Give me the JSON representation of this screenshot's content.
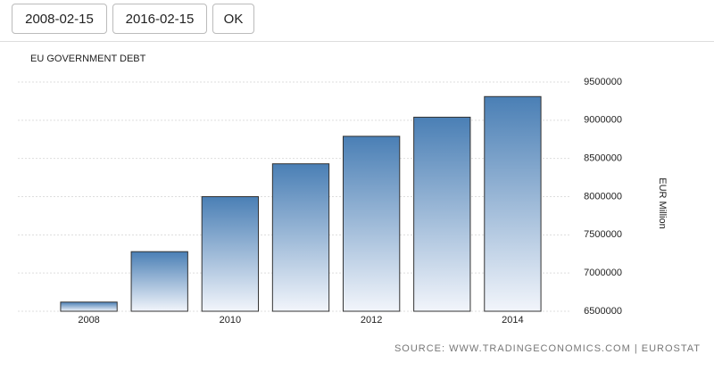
{
  "controls": {
    "start_date": "2008-02-15",
    "end_date": "2016-02-15",
    "ok": "OK"
  },
  "chart_data": {
    "type": "bar",
    "title": "EU GOVERNMENT DEBT",
    "categories": [
      "2008",
      null,
      "2010",
      null,
      "2012",
      null,
      "2014"
    ],
    "values": [
      6620000,
      7280000,
      8000000,
      8430000,
      8790000,
      9040000,
      9310000
    ],
    "color": "#4a7fb5",
    "ylim": [
      6500000,
      9500000
    ],
    "yticks": [
      6500000,
      7000000,
      7500000,
      8000000,
      8500000,
      9000000,
      9500000
    ],
    "y_label": "EUR Million",
    "grid": true,
    "source": "SOURCE: WWW.TRADINGECONOMICS.COM | EUROSTAT"
  }
}
